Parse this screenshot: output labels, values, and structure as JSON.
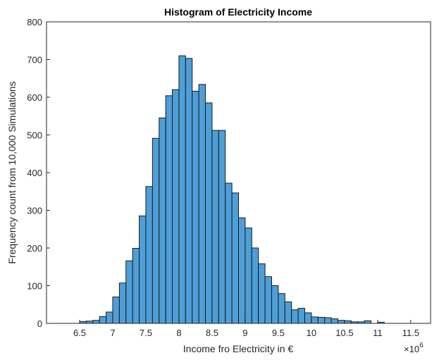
{
  "chart_data": {
    "type": "bar",
    "title": "Histogram of Electricity Income",
    "xlabel": "Income fro Electricity in €",
    "ylabel": "Frequency count from 10,000 Simulations",
    "x_exponent_label": "×10",
    "x_exponent_power": "6",
    "xlim": [
      6.0,
      11.8
    ],
    "ylim": [
      0,
      800
    ],
    "x_ticks": [
      6.5,
      7,
      7.5,
      8,
      8.5,
      9,
      9.5,
      10,
      10.5,
      11,
      11.5
    ],
    "x_tick_labels": [
      "6.5",
      "7",
      "7.5",
      "8",
      "8.5",
      "9",
      "9.5",
      "10",
      "10.5",
      "11",
      "11.5"
    ],
    "y_ticks": [
      0,
      100,
      200,
      300,
      400,
      500,
      600,
      700,
      800
    ],
    "y_tick_labels": [
      "0",
      "100",
      "200",
      "300",
      "400",
      "500",
      "600",
      "700",
      "800"
    ],
    "bin_start": 6.5,
    "bin_width": 0.1,
    "values": [
      5,
      6,
      8,
      18,
      30,
      70,
      107,
      166,
      199,
      285,
      363,
      491,
      545,
      604,
      620,
      710,
      703,
      616,
      634,
      585,
      512,
      512,
      372,
      346,
      280,
      253,
      200,
      158,
      124,
      100,
      79,
      57,
      36,
      40,
      28,
      17,
      16,
      15,
      12,
      8,
      7,
      4,
      4,
      7,
      0,
      3,
      0
    ],
    "grid": false,
    "legend": "none",
    "bar_color": "#4e9fd8"
  }
}
